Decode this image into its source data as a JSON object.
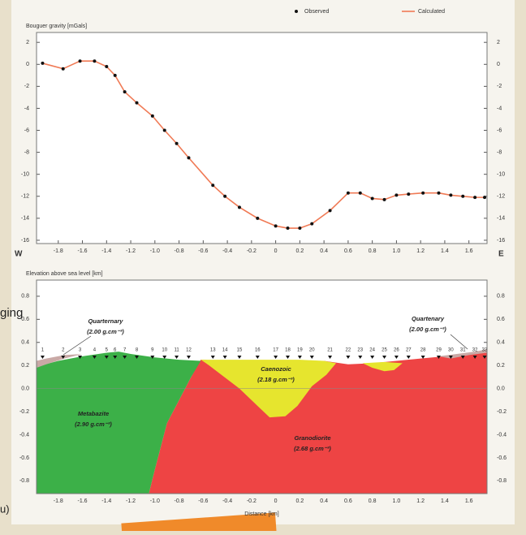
{
  "chart_data": [
    {
      "type": "line",
      "title": "Bouguer gravity [mGals]",
      "x": [
        -1.93,
        -1.76,
        -1.62,
        -1.5,
        -1.4,
        -1.33,
        -1.25,
        -1.15,
        -1.02,
        -0.92,
        -0.82,
        -0.72,
        -0.52,
        -0.42,
        -0.3,
        -0.15,
        0.0,
        0.1,
        0.2,
        0.3,
        0.45,
        0.6,
        0.7,
        0.8,
        0.9,
        1.0,
        1.1,
        1.22,
        1.35,
        1.45,
        1.55,
        1.65,
        1.73
      ],
      "series": [
        {
          "name": "Observed",
          "color": "#111111",
          "mode": "markers",
          "values": [
            0.1,
            -0.4,
            0.3,
            0.3,
            -0.2,
            -1.0,
            -2.5,
            -3.5,
            -4.7,
            -6.0,
            -7.2,
            -8.5,
            -11.0,
            -12.0,
            -13.0,
            -14.0,
            -14.7,
            -14.9,
            -14.9,
            -14.5,
            -13.3,
            -11.7,
            -11.7,
            -12.2,
            -12.3,
            -11.9,
            -11.8,
            -11.7,
            -11.7,
            -11.9,
            -12.0,
            -12.1,
            -12.1
          ]
        },
        {
          "name": "Calculated",
          "color": "#f07a55",
          "mode": "lines",
          "values": [
            0.1,
            -0.4,
            0.3,
            0.3,
            -0.2,
            -1.0,
            -2.5,
            -3.5,
            -4.7,
            -6.0,
            -7.2,
            -8.5,
            -11.0,
            -12.0,
            -13.0,
            -14.0,
            -14.7,
            -14.9,
            -14.9,
            -14.5,
            -13.3,
            -11.7,
            -11.7,
            -12.2,
            -12.3,
            -11.9,
            -11.8,
            -11.7,
            -11.7,
            -11.9,
            -12.0,
            -12.1,
            -12.1
          ]
        }
      ],
      "xlim": [
        -1.98,
        1.75
      ],
      "ylim": [
        -16.3,
        2.9
      ],
      "xticks": [
        -1.8,
        -1.6,
        -1.4,
        -1.2,
        {
          "value": -1,
          "label": "-1.0"
        },
        -0.8,
        -0.6,
        -0.4,
        -0.2,
        0,
        0.2,
        0.4,
        0.6,
        0.8,
        {
          "value": 1,
          "label": "1.0"
        },
        1.2,
        1.4,
        1.6
      ],
      "yticks": [
        2,
        0,
        -2,
        -4,
        -6,
        -8,
        -10,
        -12,
        -14,
        -16
      ],
      "side_labels": [
        "W",
        "E"
      ]
    },
    {
      "type": "cross-section",
      "title": "Elevation above sea level [km]",
      "x_label": "Distance [km]",
      "xlim": [
        -1.98,
        1.75
      ],
      "ylim": [
        -0.91,
        0.94
      ],
      "xticks": [
        -1.8,
        -1.6,
        -1.4,
        -1.2,
        {
          "value": -1,
          "label": "-1.0"
        },
        -0.8,
        -0.6,
        -0.4,
        -0.2,
        0,
        0.2,
        0.4,
        0.6,
        0.8,
        {
          "value": 1,
          "label": "1.0"
        },
        1.2,
        1.4,
        1.6
      ],
      "yticks": [
        0.8,
        0.6,
        0.4,
        0.2,
        {
          "value": 0,
          "label": "0.0"
        },
        -0.2,
        -0.4,
        -0.6,
        -0.8
      ],
      "bodies": [
        {
          "name": "Granodiorite",
          "density": "(2.68 g.cm⁻³)",
          "color": "#ee4444",
          "x": [
            -1.05,
            -1.0,
            -0.95,
            -0.9,
            -0.8,
            -0.7,
            -0.62,
            -0.4,
            0,
            0.4,
            0.6,
            0.8,
            1.0,
            1.2,
            1.4,
            1.6,
            1.75,
            1.75
          ],
          "y": [
            -0.91,
            -0.7,
            -0.5,
            -0.3,
            -0.1,
            0.1,
            0.25,
            0.24,
            0.24,
            0.24,
            0.21,
            0.22,
            0.24,
            0.26,
            0.28,
            0.3,
            0.32,
            -0.91
          ]
        },
        {
          "name": "Caenozoic",
          "density": "(2.18 g.cm⁻³)",
          "color": "#e6e52e",
          "x": [
            -0.62,
            -0.4,
            -0.2,
            0,
            0.2,
            0.4,
            0.5,
            0.42,
            0.3,
            0.18,
            0.08,
            -0.05,
            -0.15,
            -0.3,
            -0.45,
            -0.55
          ],
          "y": [
            0.25,
            0.25,
            0.25,
            0.25,
            0.25,
            0.24,
            0.22,
            0.12,
            0.02,
            -0.15,
            -0.24,
            -0.25,
            -0.15,
            0.0,
            0.12,
            0.2
          ]
        },
        {
          "color": "#e6e52e",
          "x": [
            0.72,
            0.9,
            1.05,
            0.98,
            0.9,
            0.8
          ],
          "y": [
            0.22,
            0.23,
            0.22,
            0.16,
            0.15,
            0.18
          ]
        },
        {
          "name": "Metabazite",
          "density": "(2.90 g.cm⁻³)",
          "color": "#3cb048",
          "x": [
            -1.98,
            -1.98,
            -1.8,
            -1.6,
            -1.4,
            -1.3,
            -1.2,
            -1.0,
            -0.8,
            -0.62,
            -0.7,
            -0.8,
            -0.9,
            -0.95,
            -1.0,
            -1.05
          ],
          "y": [
            -0.91,
            0.19,
            0.24,
            0.28,
            0.31,
            0.32,
            0.3,
            0.27,
            0.25,
            0.24,
            0.1,
            -0.1,
            -0.3,
            -0.5,
            -0.7,
            -0.91
          ]
        },
        {
          "name": "Quarternary",
          "density": "(2.00 g.cm⁻³)",
          "color": "#c9a9a6",
          "x": [
            -1.98,
            -1.9,
            -1.75,
            -1.6,
            -1.75,
            -1.9,
            -1.98
          ],
          "y": [
            0.24,
            0.26,
            0.29,
            0.3,
            0.26,
            0.21,
            0.18
          ]
        },
        {
          "name": "Quartenary",
          "density": "(2.00 g.cm⁻³)",
          "color": "#c9a9a6",
          "x": [
            1.35,
            1.5,
            1.65,
            1.75,
            1.75,
            1.6,
            1.45
          ],
          "y": [
            0.28,
            0.3,
            0.32,
            0.34,
            0.31,
            0.29,
            0.26
          ]
        }
      ],
      "stations": {
        "labels": [
          "1",
          "2",
          "3",
          "4",
          "5",
          "6",
          "7",
          "8",
          "9",
          "10",
          "11",
          "12",
          "13",
          "14",
          "15",
          "16",
          "17",
          "18",
          "19",
          "20",
          "21",
          "22",
          "23",
          "24",
          "25",
          "26",
          "27",
          "28",
          "29",
          "30",
          "31",
          "32",
          "33"
        ],
        "x": [
          -1.93,
          -1.76,
          -1.62,
          -1.5,
          -1.4,
          -1.33,
          -1.25,
          -1.15,
          -1.02,
          -0.92,
          -0.82,
          -0.72,
          -0.52,
          -0.42,
          -0.3,
          -0.15,
          0.0,
          0.1,
          0.2,
          0.3,
          0.45,
          0.6,
          0.7,
          0.8,
          0.9,
          1.0,
          1.1,
          1.22,
          1.35,
          1.45,
          1.55,
          1.65,
          1.73
        ]
      }
    }
  ],
  "page": {
    "fragments": [
      "ging",
      "u)"
    ]
  }
}
